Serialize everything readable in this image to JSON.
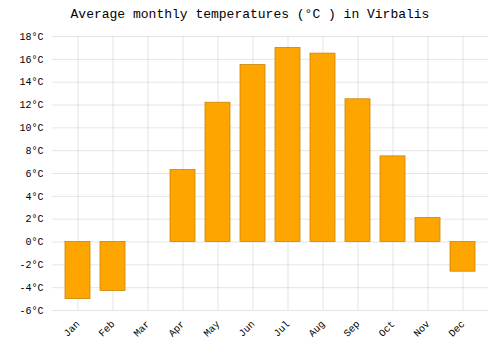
{
  "chart_data": {
    "type": "bar",
    "title": "Average monthly temperatures (°C ) in Virbalis",
    "categories": [
      "Jan",
      "Feb",
      "Mar",
      "Apr",
      "May",
      "Jun",
      "Jul",
      "Aug",
      "Sep",
      "Oct",
      "Nov",
      "Dec"
    ],
    "values": [
      -5.0,
      -4.3,
      0.0,
      6.3,
      12.2,
      15.5,
      17.0,
      16.5,
      12.5,
      7.5,
      2.1,
      -2.6
    ],
    "color": "#FFA500",
    "ylim": [
      -6,
      18
    ],
    "yticks": [
      {
        "value": -6,
        "label": "-6°C"
      },
      {
        "value": -4,
        "label": "-4°C"
      },
      {
        "value": -2,
        "label": "-2°C"
      },
      {
        "value": 0,
        "label": "0°C"
      },
      {
        "value": 2,
        "label": "2°C"
      },
      {
        "value": 4,
        "label": "4°C"
      },
      {
        "value": 6,
        "label": "6°C"
      },
      {
        "value": 8,
        "label": "8°C"
      },
      {
        "value": 10,
        "label": "10°C"
      },
      {
        "value": 12,
        "label": "12°C"
      },
      {
        "value": 14,
        "label": "14°C"
      },
      {
        "value": 16,
        "label": "16°C"
      },
      {
        "value": 18,
        "label": "18°C"
      }
    ],
    "grid": true
  }
}
